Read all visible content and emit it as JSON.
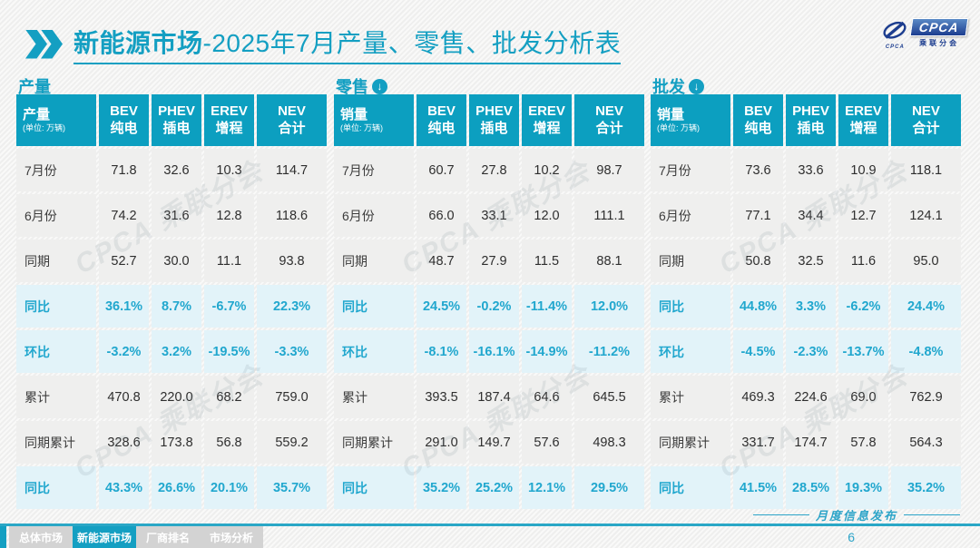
{
  "slide": {
    "title": {
      "prefix_bold": "新能源市场",
      "suffix": "-2025年7月产量、零售、批发分析表"
    },
    "logo": {
      "brand": "CPCA",
      "brand_sub": "乘联分会",
      "swoosh_caption": "CPCA"
    },
    "publication_label": "月度信息发布",
    "page_number": "6"
  },
  "colors": {
    "primary_teal": "#149FC2",
    "table_header_bg": "#0C9FC0",
    "percent_text": "#21A7CE",
    "percent_row_bg": "#E2F3F9",
    "row_bg": "#EFEFEE",
    "logo_blue": "#1C3D8F",
    "tab_gray": "#D3D3D3"
  },
  "watermark": "CPCA 乘联分会",
  "arrow_glyph": "↓",
  "tables": [
    {
      "section_title": "产量",
      "has_arrow": false,
      "corner": {
        "title": "产量",
        "unit": "(单位: 万辆)"
      },
      "columns": [
        {
          "l1": "BEV",
          "l2": "纯电"
        },
        {
          "l1": "PHEV",
          "l2": "插电"
        },
        {
          "l1": "EREV",
          "l2": "增程"
        },
        {
          "l1": "NEV",
          "l2": "合计"
        }
      ],
      "rows": [
        {
          "label": "7月份",
          "pct": false,
          "values": [
            "71.8",
            "32.6",
            "10.3",
            "114.7"
          ]
        },
        {
          "label": "6月份",
          "pct": false,
          "values": [
            "74.2",
            "31.6",
            "12.8",
            "118.6"
          ]
        },
        {
          "label": "同期",
          "pct": false,
          "values": [
            "52.7",
            "30.0",
            "11.1",
            "93.8"
          ]
        },
        {
          "label": "同比",
          "pct": true,
          "values": [
            "36.1%",
            "8.7%",
            "-6.7%",
            "22.3%"
          ]
        },
        {
          "label": "环比",
          "pct": true,
          "values": [
            "-3.2%",
            "3.2%",
            "-19.5%",
            "-3.3%"
          ]
        },
        {
          "label": "累计",
          "pct": false,
          "values": [
            "470.8",
            "220.0",
            "68.2",
            "759.0"
          ]
        },
        {
          "label": "同期累计",
          "pct": false,
          "values": [
            "328.6",
            "173.8",
            "56.8",
            "559.2"
          ]
        },
        {
          "label": "同比",
          "pct": true,
          "values": [
            "43.3%",
            "26.6%",
            "20.1%",
            "35.7%"
          ]
        }
      ]
    },
    {
      "section_title": "零售",
      "has_arrow": true,
      "corner": {
        "title": "销量",
        "unit": "(单位: 万辆)"
      },
      "columns": [
        {
          "l1": "BEV",
          "l2": "纯电"
        },
        {
          "l1": "PHEV",
          "l2": "插电"
        },
        {
          "l1": "EREV",
          "l2": "增程"
        },
        {
          "l1": "NEV",
          "l2": "合计"
        }
      ],
      "rows": [
        {
          "label": "7月份",
          "pct": false,
          "values": [
            "60.7",
            "27.8",
            "10.2",
            "98.7"
          ]
        },
        {
          "label": "6月份",
          "pct": false,
          "values": [
            "66.0",
            "33.1",
            "12.0",
            "111.1"
          ]
        },
        {
          "label": "同期",
          "pct": false,
          "values": [
            "48.7",
            "27.9",
            "11.5",
            "88.1"
          ]
        },
        {
          "label": "同比",
          "pct": true,
          "values": [
            "24.5%",
            "-0.2%",
            "-11.4%",
            "12.0%"
          ]
        },
        {
          "label": "环比",
          "pct": true,
          "values": [
            "-8.1%",
            "-16.1%",
            "-14.9%",
            "-11.2%"
          ]
        },
        {
          "label": "累计",
          "pct": false,
          "values": [
            "393.5",
            "187.4",
            "64.6",
            "645.5"
          ]
        },
        {
          "label": "同期累计",
          "pct": false,
          "values": [
            "291.0",
            "149.7",
            "57.6",
            "498.3"
          ]
        },
        {
          "label": "同比",
          "pct": true,
          "values": [
            "35.2%",
            "25.2%",
            "12.1%",
            "29.5%"
          ]
        }
      ]
    },
    {
      "section_title": "批发",
      "has_arrow": true,
      "corner": {
        "title": "销量",
        "unit": "(单位: 万辆)"
      },
      "columns": [
        {
          "l1": "BEV",
          "l2": "纯电"
        },
        {
          "l1": "PHEV",
          "l2": "插电"
        },
        {
          "l1": "EREV",
          "l2": "增程"
        },
        {
          "l1": "NEV",
          "l2": "合计"
        }
      ],
      "rows": [
        {
          "label": "7月份",
          "pct": false,
          "values": [
            "73.6",
            "33.6",
            "10.9",
            "118.1"
          ]
        },
        {
          "label": "6月份",
          "pct": false,
          "values": [
            "77.1",
            "34.4",
            "12.7",
            "124.1"
          ]
        },
        {
          "label": "同期",
          "pct": false,
          "values": [
            "50.8",
            "32.5",
            "11.6",
            "95.0"
          ]
        },
        {
          "label": "同比",
          "pct": true,
          "values": [
            "44.8%",
            "3.3%",
            "-6.2%",
            "24.4%"
          ]
        },
        {
          "label": "环比",
          "pct": true,
          "values": [
            "-4.5%",
            "-2.3%",
            "-13.7%",
            "-4.8%"
          ]
        },
        {
          "label": "累计",
          "pct": false,
          "values": [
            "469.3",
            "224.6",
            "69.0",
            "762.9"
          ]
        },
        {
          "label": "同期累计",
          "pct": false,
          "values": [
            "331.7",
            "174.7",
            "57.8",
            "564.3"
          ]
        },
        {
          "label": "同比",
          "pct": true,
          "values": [
            "41.5%",
            "28.5%",
            "19.3%",
            "35.2%"
          ]
        }
      ]
    }
  ],
  "footer": {
    "tabs": [
      {
        "label": "总体市场",
        "active": false
      },
      {
        "label": "新能源市场",
        "active": true
      },
      {
        "label": "厂商排名",
        "active": false
      },
      {
        "label": "市场分析",
        "active": false
      }
    ]
  }
}
